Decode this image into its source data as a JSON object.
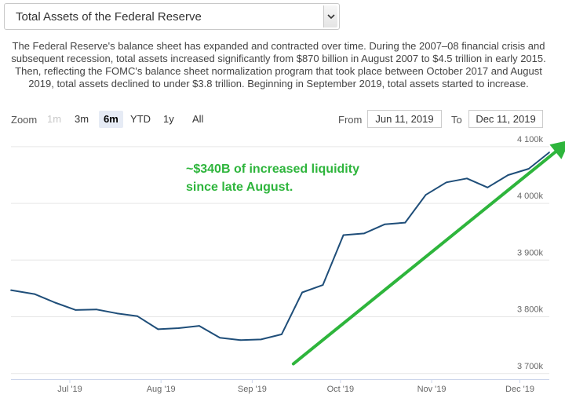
{
  "header": {
    "select_value": "Total Assets of the Federal Reserve",
    "description": "The Federal Reserve's balance sheet has expanded and contracted over time. During the 2007–08 financial crisis and subsequent recession, total assets increased significantly from $870 billion in August 2007 to $4.5 trillion in early 2015. Then, reflecting the FOMC's balance sheet normalization program that took place between October 2017 and August 2019, total assets declined to under $3.8 trillion. Beginning in September 2019, total assets started to increase."
  },
  "zoom": {
    "label": "Zoom",
    "buttons": [
      {
        "label": "1m",
        "state": "disabled"
      },
      {
        "label": "3m",
        "state": "normal"
      },
      {
        "label": "6m",
        "state": "active"
      },
      {
        "label": "YTD",
        "state": "normal"
      },
      {
        "label": "1y",
        "state": "normal"
      },
      {
        "label": "All",
        "state": "normal"
      }
    ]
  },
  "range": {
    "from_label": "From",
    "from_value": "Jun 11, 2019",
    "to_label": "To",
    "to_value": "Dec 11, 2019"
  },
  "colors": {
    "line": "#1f4e79",
    "annotation": "#2eb53c",
    "grid": "#e6e6e6"
  },
  "chart_data": {
    "type": "line",
    "title": "",
    "xlabel": "",
    "ylabel": "",
    "x_ticks": [
      "Jul '19",
      "Aug '19",
      "Sep '19",
      "Oct '19",
      "Nov '19",
      "Dec '19"
    ],
    "y_ticks": [
      "3 700k",
      "3 800k",
      "3 900k",
      "4 000k",
      "4 100k"
    ],
    "ylim": [
      3690000,
      4115000
    ],
    "xlim": [
      "2019-06-11",
      "2019-12-11"
    ],
    "grid": true,
    "series": [
      {
        "name": "",
        "points": [
          {
            "x": "2019-06-11",
            "y": 3847000
          },
          {
            "x": "2019-06-19",
            "y": 3840000
          },
          {
            "x": "2019-06-26",
            "y": 3825000
          },
          {
            "x": "2019-07-03",
            "y": 3812000
          },
          {
            "x": "2019-07-10",
            "y": 3813000
          },
          {
            "x": "2019-07-17",
            "y": 3806000
          },
          {
            "x": "2019-07-24",
            "y": 3801000
          },
          {
            "x": "2019-07-31",
            "y": 3778000
          },
          {
            "x": "2019-08-07",
            "y": 3780000
          },
          {
            "x": "2019-08-14",
            "y": 3784000
          },
          {
            "x": "2019-08-21",
            "y": 3763000
          },
          {
            "x": "2019-08-28",
            "y": 3759000
          },
          {
            "x": "2019-09-04",
            "y": 3760000
          },
          {
            "x": "2019-09-11",
            "y": 3769000
          },
          {
            "x": "2019-09-18",
            "y": 3843000
          },
          {
            "x": "2019-09-25",
            "y": 3856000
          },
          {
            "x": "2019-10-02",
            "y": 3944000
          },
          {
            "x": "2019-10-09",
            "y": 3947000
          },
          {
            "x": "2019-10-16",
            "y": 3963000
          },
          {
            "x": "2019-10-23",
            "y": 3966000
          },
          {
            "x": "2019-10-30",
            "y": 4015000
          },
          {
            "x": "2019-11-06",
            "y": 4037000
          },
          {
            "x": "2019-11-13",
            "y": 4044000
          },
          {
            "x": "2019-11-20",
            "y": 4028000
          },
          {
            "x": "2019-11-27",
            "y": 4050000
          },
          {
            "x": "2019-12-04",
            "y": 4061000
          },
          {
            "x": "2019-12-11",
            "y": 4090000
          }
        ]
      }
    ],
    "annotations": [
      {
        "text": "~$340B of increased liquidity",
        "color": "#2eb53c"
      },
      {
        "text": "since late August.",
        "color": "#2eb53c"
      }
    ],
    "arrow": {
      "from": {
        "x": "2019-09-15",
        "y": 3717000
      },
      "to": {
        "x": "2019-12-16",
        "y": 4103000
      },
      "color": "#2eb53c"
    }
  }
}
